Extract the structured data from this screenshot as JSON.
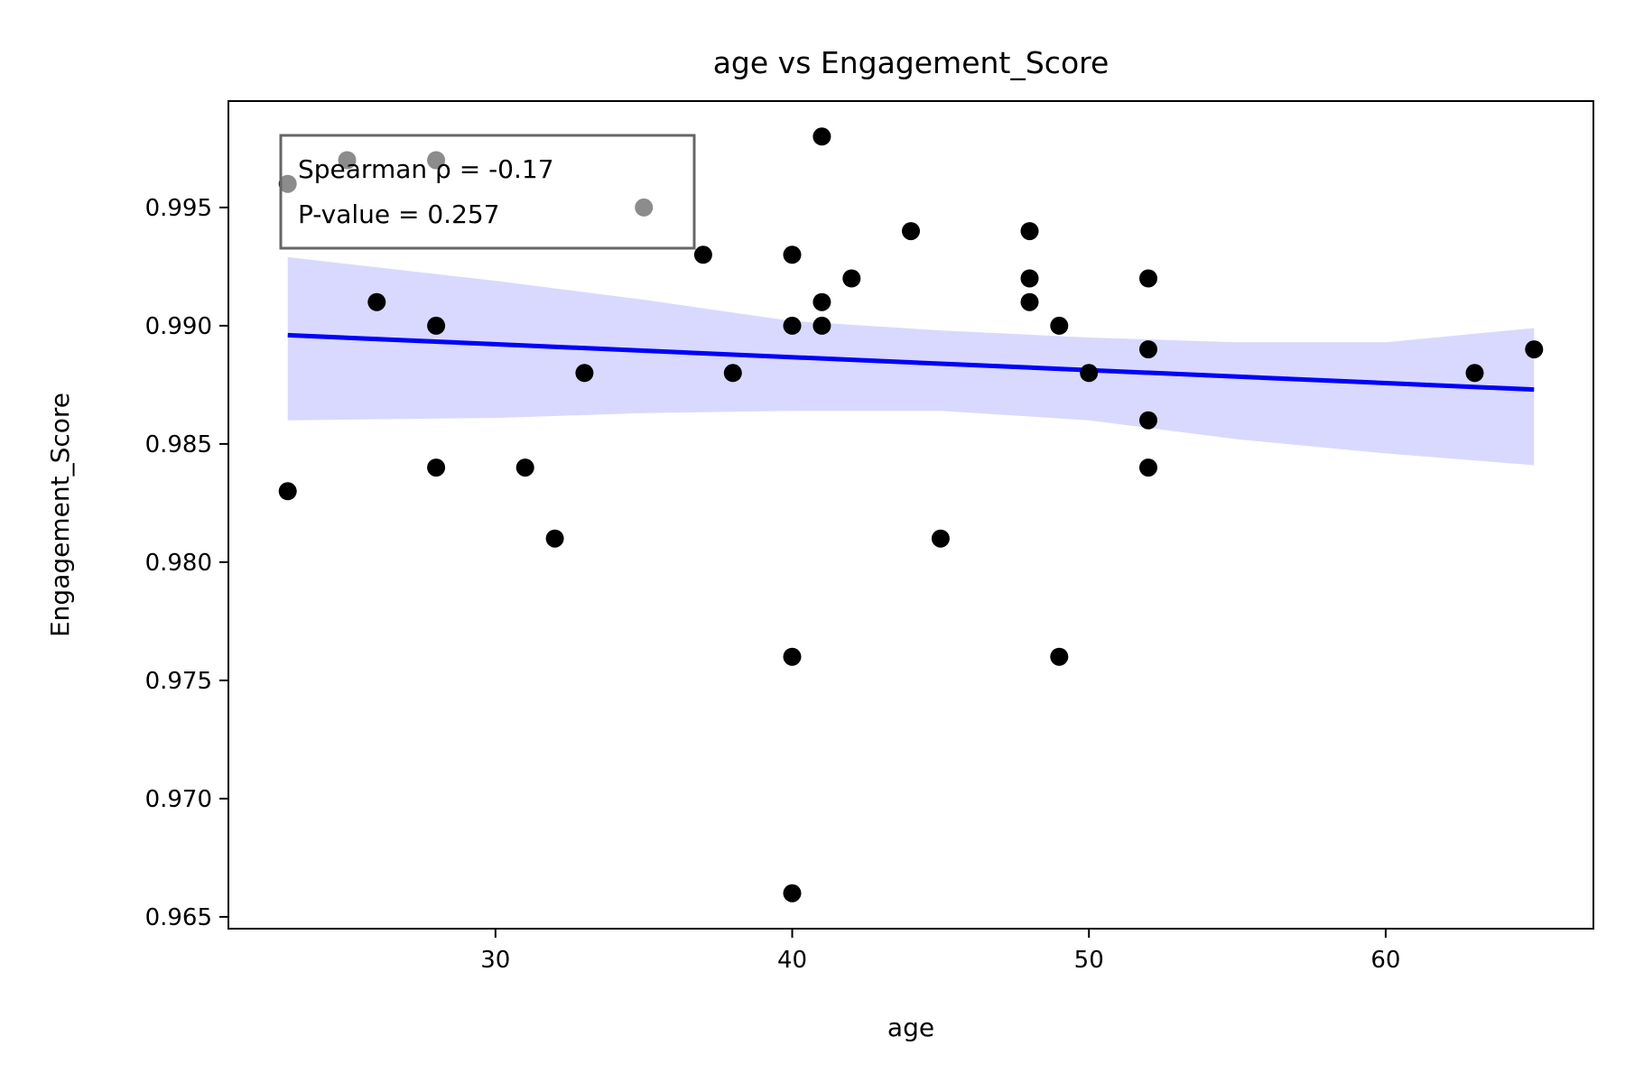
{
  "chart_data": {
    "type": "scatter",
    "title": "age vs Engagement_Score",
    "xlabel": "age",
    "ylabel": "Engagement_Score",
    "xlim": [
      21,
      67
    ],
    "ylim": [
      0.9645,
      0.9995
    ],
    "xticks": [
      30,
      40,
      50,
      60
    ],
    "yticks": [
      0.965,
      0.97,
      0.975,
      0.98,
      0.985,
      0.99,
      0.995
    ],
    "grid": false,
    "legend": "none",
    "points": [
      {
        "x": 23,
        "y": 0.996
      },
      {
        "x": 25,
        "y": 0.997
      },
      {
        "x": 28,
        "y": 0.997
      },
      {
        "x": 35,
        "y": 0.995
      },
      {
        "x": 41,
        "y": 0.998
      },
      {
        "x": 37,
        "y": 0.993
      },
      {
        "x": 40,
        "y": 0.993
      },
      {
        "x": 44,
        "y": 0.994
      },
      {
        "x": 48,
        "y": 0.994
      },
      {
        "x": 42,
        "y": 0.992
      },
      {
        "x": 48,
        "y": 0.992
      },
      {
        "x": 52,
        "y": 0.992
      },
      {
        "x": 26,
        "y": 0.991
      },
      {
        "x": 41,
        "y": 0.991
      },
      {
        "x": 48,
        "y": 0.991
      },
      {
        "x": 28,
        "y": 0.99
      },
      {
        "x": 40,
        "y": 0.99
      },
      {
        "x": 41,
        "y": 0.99
      },
      {
        "x": 49,
        "y": 0.99
      },
      {
        "x": 52,
        "y": 0.989
      },
      {
        "x": 65,
        "y": 0.989
      },
      {
        "x": 33,
        "y": 0.988
      },
      {
        "x": 38,
        "y": 0.988
      },
      {
        "x": 50,
        "y": 0.988
      },
      {
        "x": 63,
        "y": 0.988
      },
      {
        "x": 52,
        "y": 0.986
      },
      {
        "x": 28,
        "y": 0.984
      },
      {
        "x": 31,
        "y": 0.984
      },
      {
        "x": 52,
        "y": 0.984
      },
      {
        "x": 23,
        "y": 0.983
      },
      {
        "x": 32,
        "y": 0.981
      },
      {
        "x": 45,
        "y": 0.981
      },
      {
        "x": 40,
        "y": 0.976
      },
      {
        "x": 49,
        "y": 0.976
      },
      {
        "x": 40,
        "y": 0.966
      }
    ],
    "fit_line": {
      "x": [
        23,
        65
      ],
      "y": [
        0.9896,
        0.9873
      ],
      "color": "#0000ff"
    },
    "confidence_band": {
      "x": [
        23,
        30,
        35,
        40,
        45,
        50,
        55,
        60,
        65
      ],
      "upper": [
        0.9929,
        0.9919,
        0.9911,
        0.9902,
        0.9898,
        0.9895,
        0.9893,
        0.9893,
        0.9899
      ],
      "lower": [
        0.986,
        0.9861,
        0.9863,
        0.9864,
        0.9864,
        0.986,
        0.9852,
        0.9846,
        0.9841
      ],
      "color": "#d9d9ff"
    },
    "annotation": [
      "Spearman ρ = -0.17",
      "P-value = 0.257"
    ],
    "colors": {
      "points": "#000000",
      "fit": "#0000ff",
      "band": "#d9d9ff",
      "annotation_border": "#666666"
    }
  }
}
